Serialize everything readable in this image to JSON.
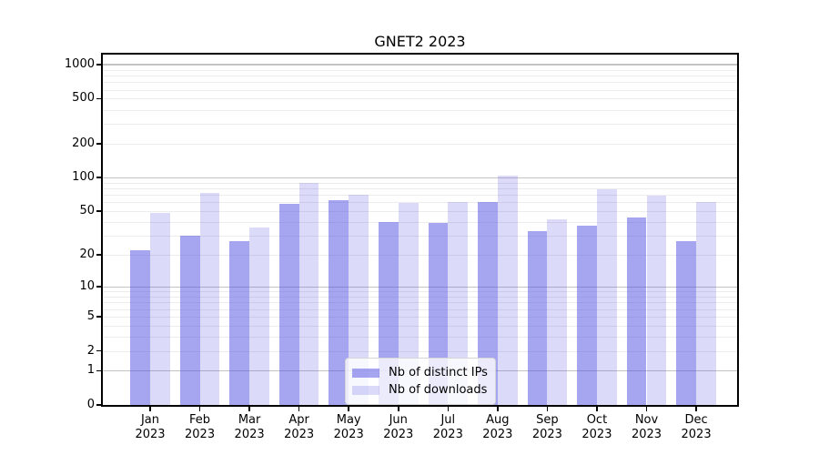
{
  "title": "GNET2 2023",
  "chart_data": {
    "type": "bar",
    "title": "GNET2 2023",
    "categories": [
      "Jan",
      "Feb",
      "Mar",
      "Apr",
      "May",
      "Jun",
      "Jul",
      "Aug",
      "Sep",
      "Oct",
      "Nov",
      "Dec"
    ],
    "category_year": "2023",
    "series": [
      {
        "name": "Nb of distinct IPs",
        "display_color": "#a6a6f0",
        "color_base": "#4d4de2",
        "alpha": 0.5,
        "values": [
          22,
          30,
          27,
          58,
          63,
          40,
          39,
          60,
          33,
          37,
          44,
          27
        ]
      },
      {
        "name": "Nb of downloads",
        "display_color": "#dbdbf8",
        "color_base": "#4d4de2",
        "alpha": 0.2,
        "values": [
          48,
          73,
          36,
          90,
          70,
          59,
          60,
          104,
          42,
          78,
          69,
          61
        ]
      }
    ],
    "yscale": "log1p",
    "yticks": [
      0,
      1,
      2,
      5,
      10,
      20,
      50,
      100,
      200,
      500,
      1000
    ],
    "ylim": [
      0,
      1225
    ],
    "grid": true,
    "legend_position": "lower center",
    "colors": {
      "grid_major": "#c3c3c3",
      "grid_minor": "#ececec",
      "axis": "#000000",
      "background": "#ffffff"
    }
  }
}
